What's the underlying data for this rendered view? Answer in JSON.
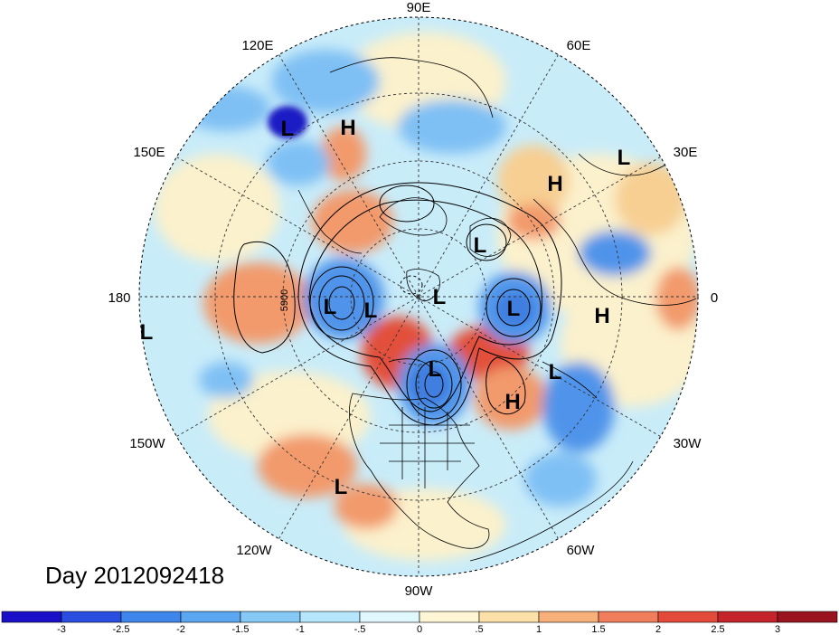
{
  "title": "Day 2012092418",
  "longitude_labels": [
    "90E",
    "60E",
    "120E",
    "30E",
    "150E",
    "180",
    "0",
    "150W",
    "30W",
    "120W",
    "60W",
    "90W"
  ],
  "contour_label": "5900",
  "pressure_centers": [
    {
      "type": "L"
    },
    {
      "type": "H"
    },
    {
      "type": "L"
    },
    {
      "type": "H"
    },
    {
      "type": "L"
    },
    {
      "type": "L"
    },
    {
      "type": "L"
    },
    {
      "type": "L"
    },
    {
      "type": "L"
    },
    {
      "type": "H"
    },
    {
      "type": "L"
    },
    {
      "type": "L"
    },
    {
      "type": "H"
    },
    {
      "type": "L"
    },
    {
      "type": "L"
    }
  ],
  "colorbar": {
    "labels": [
      "-3",
      "-2.5",
      "-2",
      "-1.5",
      "-1",
      "-.5",
      "0",
      ".5",
      "1",
      "1.5",
      "2",
      "2.5",
      "3"
    ],
    "colors": [
      "#1a10c8",
      "#2a4ee0",
      "#3f86ec",
      "#5aa6f0",
      "#86c8f6",
      "#b5e6fb",
      "#e0f7fd",
      "#fdf5d3",
      "#fbe0a8",
      "#f7b07a",
      "#f07d5c",
      "#e44a3a",
      "#c4242a",
      "#9a1420"
    ]
  },
  "field_colors": {
    "ocean_light_blue": "#c9ecf9",
    "light_cream": "#fbf1cc",
    "light_orange": "#f7cf93",
    "orange": "#f29a6c",
    "red": "#e2503a",
    "blue": "#4f94ea",
    "mid_blue": "#7fc0f4",
    "dark_blue": "#1b1ec4"
  }
}
